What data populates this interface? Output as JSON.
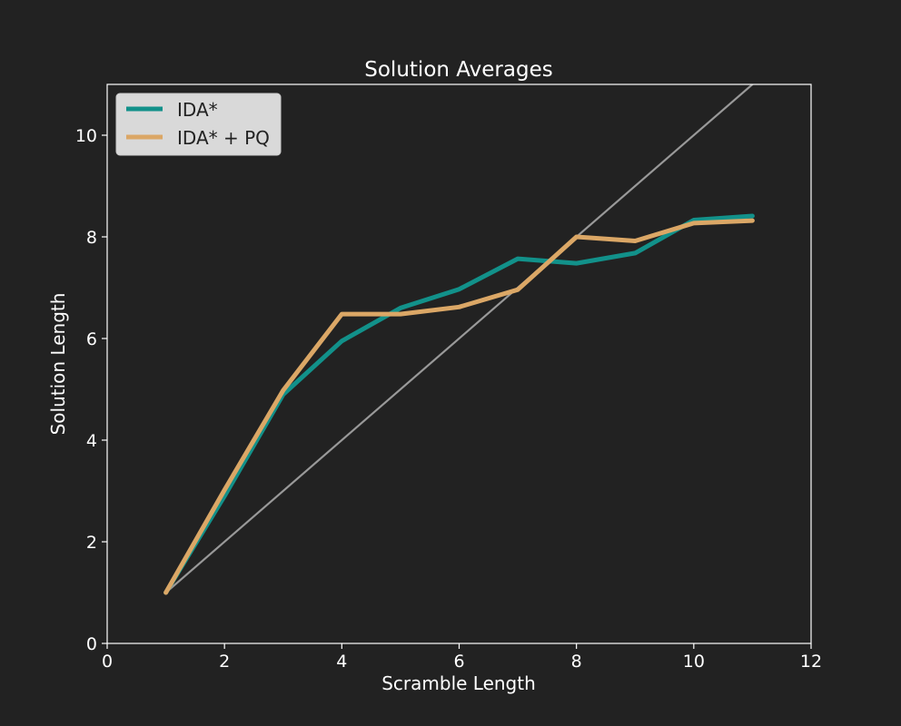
{
  "chart_data": {
    "type": "line",
    "title": "Solution Averages",
    "xlabel": "Scramble Length",
    "ylabel": "Solution Length",
    "xlim": [
      0,
      12
    ],
    "ylim": [
      0,
      11
    ],
    "xticks": [
      0,
      2,
      4,
      6,
      8,
      10,
      12
    ],
    "yticks": [
      0,
      2,
      4,
      6,
      8,
      10
    ],
    "grid": false,
    "legend_position": "top-left",
    "background_color": "#222222",
    "axes_color": "#ffffff",
    "series": [
      {
        "name": "IDA*",
        "color": "#12918a",
        "x": [
          1,
          2,
          3,
          4,
          5,
          6,
          7,
          8,
          9,
          10,
          11
        ],
        "y": [
          1.0,
          2.9,
          4.9,
          5.95,
          6.6,
          6.97,
          7.57,
          7.48,
          7.68,
          8.33,
          8.41
        ]
      },
      {
        "name": "IDA* + PQ",
        "color": "#dba766",
        "x": [
          1,
          2,
          3,
          4,
          5,
          6,
          7,
          8,
          9,
          10,
          11
        ],
        "y": [
          1.0,
          3.02,
          4.98,
          6.48,
          6.48,
          6.62,
          6.96,
          8.0,
          7.92,
          8.27,
          8.32
        ]
      }
    ],
    "reference_line": {
      "color": "#999999",
      "x": [
        1,
        11
      ],
      "y": [
        1,
        11
      ]
    }
  }
}
